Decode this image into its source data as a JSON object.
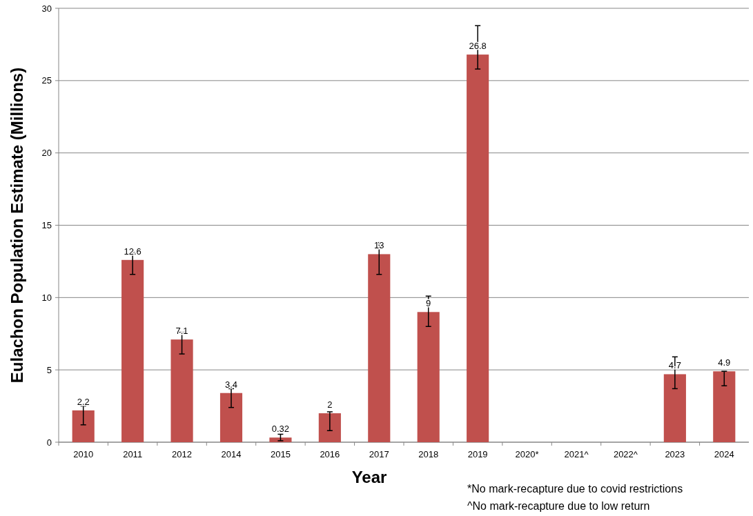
{
  "chart_data": {
    "type": "bar",
    "xlabel": "Year",
    "ylabel": "Eulachon Population Estimate (Millions)",
    "categories": [
      "2010",
      "2011",
      "2012",
      "2014",
      "2015",
      "2016",
      "2017",
      "2018",
      "2019",
      "2020*",
      "2021^",
      "2022^",
      "2023",
      "2024"
    ],
    "values": [
      2.2,
      12.6,
      7.1,
      3.4,
      0.32,
      2,
      13,
      9,
      26.8,
      null,
      null,
      null,
      4.7,
      4.9
    ],
    "errors": [
      [
        1.2,
        2.5
      ],
      [
        11.6,
        13.1
      ],
      [
        6.1,
        7.6
      ],
      [
        2.4,
        3.7
      ],
      [
        0.1,
        0.55
      ],
      [
        0.8,
        2.1
      ],
      [
        11.6,
        13.8
      ],
      [
        8,
        10.1
      ],
      [
        25.8,
        28.8
      ],
      null,
      null,
      null,
      [
        3.7,
        5.9
      ],
      [
        3.9,
        4.9
      ]
    ],
    "color": "#c0504d",
    "ylim": [
      0,
      30
    ],
    "yticks": [
      0,
      5,
      10,
      15,
      20,
      25,
      30
    ],
    "grid": "y",
    "data_labels": true,
    "annotations": [
      "*No mark-recapture due to covid restrictions",
      "^No mark-recapture due to low return"
    ]
  }
}
